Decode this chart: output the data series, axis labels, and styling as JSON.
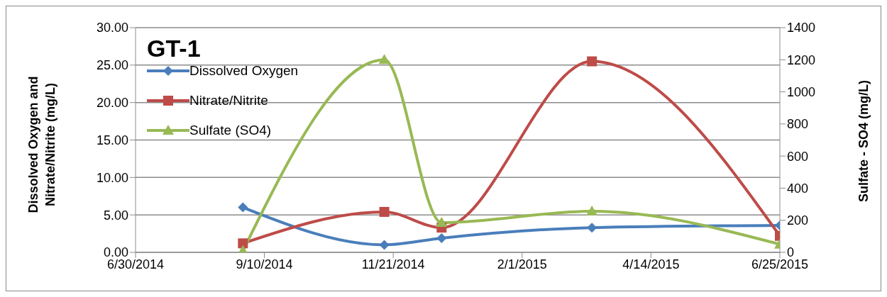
{
  "chart_data": {
    "type": "line",
    "title": "GT-1",
    "ylabel": "Dissolved Oxygen and Nitrate/Nitrite (mg/L)",
    "y2label": "Sulfate - SO4 (mg/L)",
    "x": [
      "2014-08-29",
      "2014-11-16",
      "2014-12-18",
      "2015-03-12",
      "2015-06-25"
    ],
    "series": [
      {
        "name": "Dissolved  Oxygen",
        "color": "#4a7ebb",
        "marker": "diamond",
        "values": [
          6.0,
          1.0,
          1.9,
          3.3,
          3.6
        ]
      },
      {
        "name": "Nitrate/Nitrite",
        "color": "#be4b48",
        "marker": "square",
        "values": [
          1.2,
          5.4,
          3.3,
          25.5,
          2.2
        ]
      },
      {
        "name": "Sulfate (SO4)",
        "color": "#98b954",
        "marker": "triangle",
        "axis": "y2",
        "values": [
          10,
          1200,
          185,
          256,
          50
        ]
      }
    ],
    "xlim": [
      "2014-06-30",
      "2015-06-25"
    ],
    "xticks": [
      {
        "value": "2014-06-30",
        "label": "6/30/2014"
      },
      {
        "value": "2014-09-10",
        "label": "9/10/2014"
      },
      {
        "value": "2014-11-21",
        "label": "11/21/2014"
      },
      {
        "value": "2015-02-01",
        "label": "2/1/2015"
      },
      {
        "value": "2015-04-14",
        "label": "4/14/2015"
      },
      {
        "value": "2015-06-25",
        "label": "6/25/2015"
      }
    ],
    "ylim": [
      0,
      30
    ],
    "yticks": [
      {
        "value": 0,
        "label": "0.00"
      },
      {
        "value": 5,
        "label": "5.00"
      },
      {
        "value": 10,
        "label": "10.00"
      },
      {
        "value": 15,
        "label": "15.00"
      },
      {
        "value": 20,
        "label": "20.00"
      },
      {
        "value": 25,
        "label": "25.00"
      },
      {
        "value": 30,
        "label": "30.00"
      }
    ],
    "y2lim": [
      0,
      1400
    ],
    "y2ticks": [
      0,
      200,
      400,
      600,
      800,
      1000,
      1200,
      1400
    ],
    "grid": "y",
    "legend": "top left",
    "line_style": "solid"
  }
}
